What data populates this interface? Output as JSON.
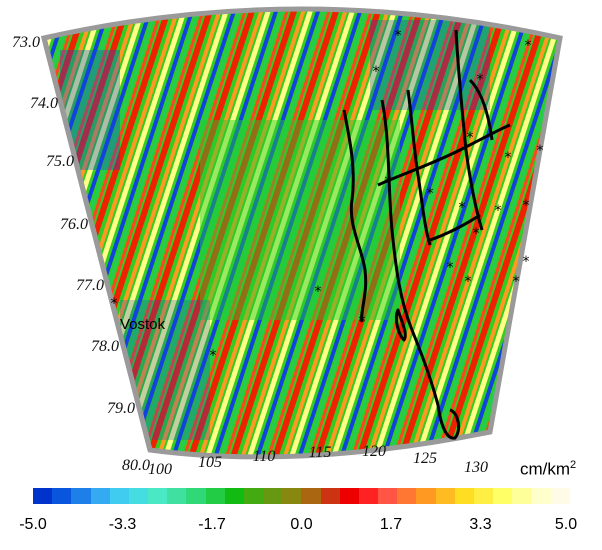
{
  "map": {
    "lat_labels": [
      "73.0",
      "74.0",
      "75.0",
      "76.0",
      "77.0",
      "78.0",
      "79.0",
      "80.0"
    ],
    "lon_labels": [
      "100",
      "105",
      "110",
      "115",
      "120",
      "125",
      "130"
    ],
    "place_label": "Vostok"
  },
  "legend": {
    "unit_base": "cm/km",
    "unit_exp": "2",
    "ticks": [
      "-5.0",
      "-3.3",
      "-1.7",
      "0.0",
      "1.7",
      "3.3",
      "5.0"
    ],
    "colors": [
      "#0033cc",
      "#0a55dd",
      "#1f7fe8",
      "#33aaf2",
      "#40ccf0",
      "#45dde0",
      "#4ae8c4",
      "#40e0a0",
      "#30d878",
      "#22cc44",
      "#12bb12",
      "#44aa11",
      "#669911",
      "#888811",
      "#aa6611",
      "#cc3311",
      "#ee0000",
      "#ff2222",
      "#ff5544",
      "#ff7733",
      "#ff9922",
      "#ffbb22",
      "#ffdd22",
      "#ffee44",
      "#ffff66",
      "#ffff99",
      "#ffffcc",
      "#fffbe6"
    ]
  }
}
